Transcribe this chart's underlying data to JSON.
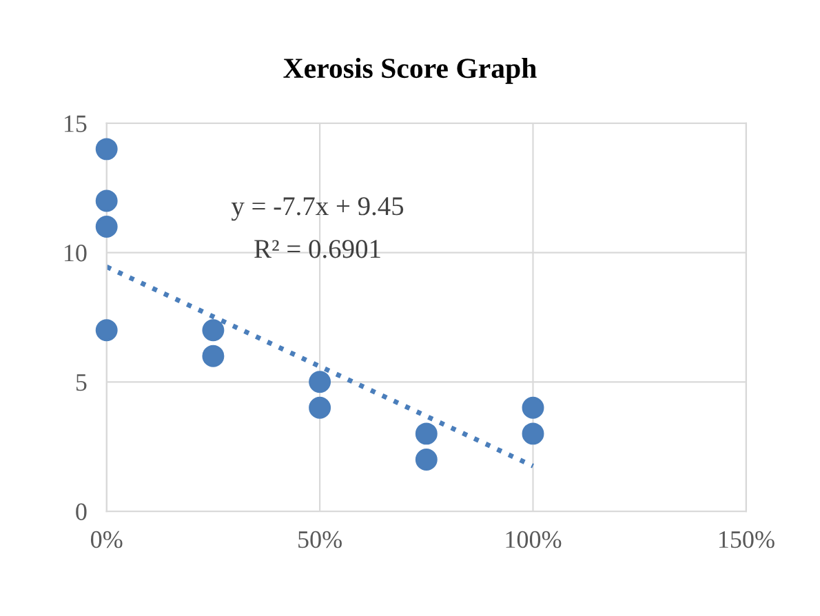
{
  "chart_data": {
    "type": "scatter",
    "title": "Xerosis Score Graph",
    "series": [
      {
        "color": "#4a7ebb",
        "marker": "circle",
        "x": [
          0,
          0,
          0,
          0,
          0.25,
          0.25,
          0.5,
          0.5,
          0.75,
          0.75,
          1,
          1
        ],
        "values": [
          14,
          12,
          11,
          7,
          7,
          6,
          5,
          4,
          3,
          2,
          4,
          3
        ]
      },
      {
        "type": "line",
        "color": "#4a7ebb",
        "line_style": "dotted",
        "marker": "none",
        "x": [
          0,
          1
        ],
        "values": [
          9.45,
          1.75
        ]
      }
    ],
    "annotations": [
      "y = -7.7x + 9.45",
      "R² = 0.6901"
    ],
    "xlim": [
      0,
      1.5
    ],
    "xticks": [
      {
        "value": 0,
        "label": "0%"
      },
      {
        "value": 0.5,
        "label": "50%"
      },
      {
        "value": 1,
        "label": "100%"
      },
      {
        "value": 1.5,
        "label": "150%"
      }
    ],
    "ylim": [
      0,
      15
    ],
    "yticks": [
      0,
      5,
      10,
      15
    ],
    "grid": true
  }
}
